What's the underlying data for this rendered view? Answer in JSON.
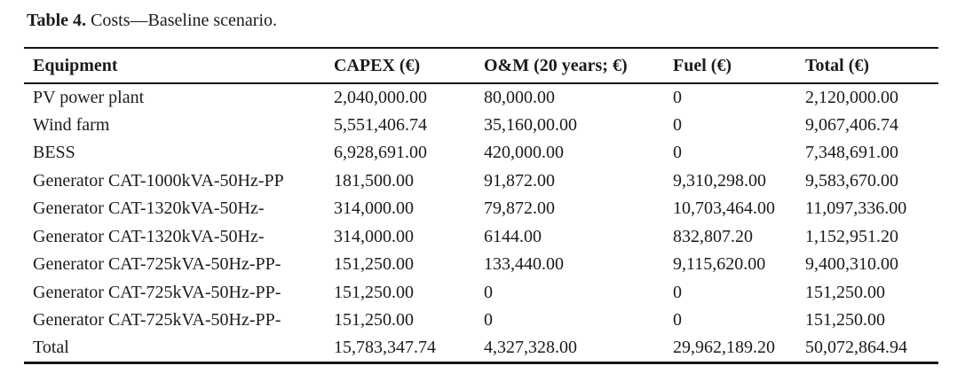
{
  "caption": {
    "label": "Table 4.",
    "text": "Costs—Baseline scenario."
  },
  "table": {
    "columns": [
      "Equipment",
      "CAPEX (€)",
      "O&M (20 years; €)",
      "Fuel (€)",
      "Total (€)"
    ],
    "rows": [
      [
        "PV power plant",
        "2,040,000.00",
        "80,000.00",
        "0",
        "2,120,000.00"
      ],
      [
        "Wind farm",
        "5,551,406.74",
        "35,160,00.00",
        "0",
        "9,067,406.74"
      ],
      [
        "BESS",
        "6,928,691.00",
        "420,000.00",
        "0",
        "7,348,691.00"
      ],
      [
        "Generator CAT-1000kVA-50Hz-PP",
        "181,500.00",
        "91,872.00",
        "9,310,298.00",
        "9,583,670.00"
      ],
      [
        "Generator CAT-1320kVA-50Hz-",
        "314,000.00",
        "79,872.00",
        "10,703,464.00",
        "11,097,336.00"
      ],
      [
        "Generator CAT-1320kVA-50Hz-",
        "314,000.00",
        "6144.00",
        "832,807.20",
        "1,152,951.20"
      ],
      [
        "Generator CAT-725kVA-50Hz-PP-",
        "151,250.00",
        "133,440.00",
        "9,115,620.00",
        "9,400,310.00"
      ],
      [
        "Generator CAT-725kVA-50Hz-PP-",
        "151,250.00",
        "0",
        "0",
        "151,250.00"
      ],
      [
        "Generator CAT-725kVA-50Hz-PP-",
        "151,250.00",
        "0",
        "0",
        "151,250.00"
      ],
      [
        "Total",
        "15,783,347.74",
        "4,327,328.00",
        "29,962,189.20",
        "50,072,864.94"
      ]
    ]
  }
}
